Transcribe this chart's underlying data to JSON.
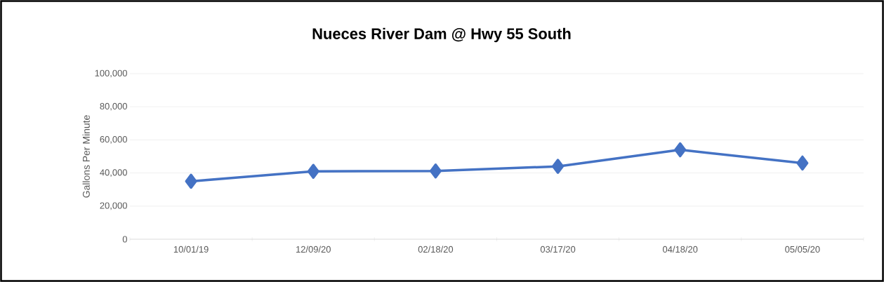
{
  "chart_data": {
    "type": "line",
    "title": "Nueces River Dam @ Hwy 55 South",
    "ylabel": "Gallons Per Minute",
    "categories": [
      "10/01/19",
      "12/09/20",
      "02/18/20",
      "03/17/20",
      "04/18/20",
      "05/05/20"
    ],
    "series": [
      {
        "color": "#4472c4",
        "values": [
          35000,
          41000,
          41200,
          44000,
          54000,
          46000
        ]
      }
    ],
    "ylim": [
      0,
      100000
    ],
    "yticks": [
      {
        "value": 0,
        "label": "0"
      },
      {
        "value": 20000,
        "label": "20,000"
      },
      {
        "value": 40000,
        "label": "40,000"
      },
      {
        "value": 60000,
        "label": "60,000"
      },
      {
        "value": 80000,
        "label": "80,000"
      },
      {
        "value": 100000,
        "label": "100,000"
      }
    ],
    "grid": "y",
    "marker": "diamond",
    "line_style": "solid"
  }
}
